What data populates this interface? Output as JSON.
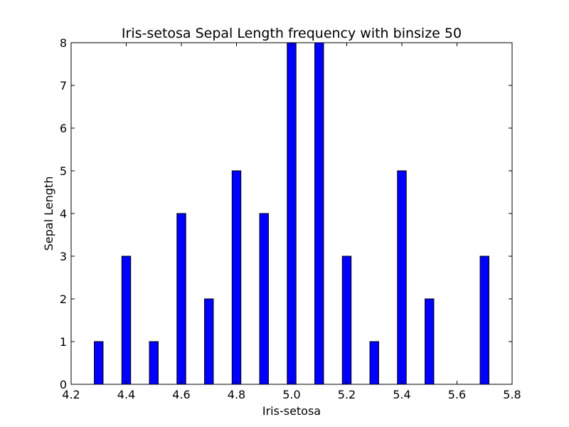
{
  "chart_data": {
    "type": "bar",
    "title": "Iris-setosa Sepal Length frequency with binsize 50",
    "xlabel": "Iris-setosa",
    "ylabel": "Sepal Length",
    "xlim": [
      4.2,
      5.8
    ],
    "ylim": [
      0,
      8
    ],
    "xticks": [
      "4.2",
      "4.4",
      "4.6",
      "4.8",
      "5.0",
      "5.2",
      "5.4",
      "5.6",
      "5.8"
    ],
    "yticks": [
      "0",
      "1",
      "2",
      "3",
      "4",
      "5",
      "6",
      "7",
      "8"
    ],
    "bar_width": 0.032,
    "x": [
      4.3,
      4.4,
      4.5,
      4.6,
      4.7,
      4.8,
      4.9,
      5.0,
      5.1,
      5.2,
      5.3,
      5.4,
      5.5,
      5.7
    ],
    "values": [
      1,
      3,
      1,
      4,
      2,
      5,
      4,
      8,
      8,
      3,
      1,
      5,
      2,
      3
    ],
    "bar_color": "#0000ff",
    "edge_color": "#000000",
    "grid": false,
    "legend": "none"
  }
}
